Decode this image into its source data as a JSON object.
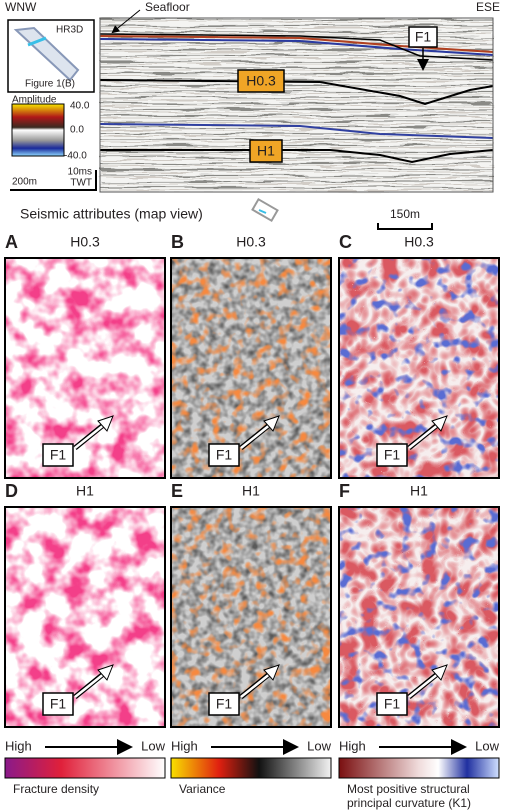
{
  "section": {
    "left_label": "WNW",
    "right_label": "ESE",
    "seafloor": "Seafloor",
    "fault": "F1",
    "horizons": [
      "H0.3",
      "H1"
    ],
    "inset": {
      "label": "HR3D",
      "caption": "Figure 1(B)"
    },
    "amplitude": {
      "title": "Amplitude",
      "ticks": [
        "40.0",
        "0.0",
        "-40.0"
      ]
    },
    "scale_h": "200m",
    "scale_v": [
      "10ms",
      "TWT"
    ]
  },
  "map_caption": "Seismic attributes (map view)",
  "map_scale": "150m",
  "panels": [
    {
      "letter": "A",
      "horizon": "H0.3",
      "fault": "F1"
    },
    {
      "letter": "B",
      "horizon": "H0.3",
      "fault": "F1"
    },
    {
      "letter": "C",
      "horizon": "H0.3",
      "fault": "F1"
    },
    {
      "letter": "D",
      "horizon": "H1",
      "fault": "F1"
    },
    {
      "letter": "E",
      "horizon": "H1",
      "fault": "F1"
    },
    {
      "letter": "F",
      "horizon": "H1",
      "fault": "F1"
    }
  ],
  "legends": [
    {
      "high": "High",
      "low": "Low",
      "label": [
        "Fracture density"
      ]
    },
    {
      "high": "High",
      "low": "Low",
      "label": [
        "Variance"
      ]
    },
    {
      "high": "High",
      "low": "Low",
      "label": [
        "Most positive structural",
        "principal curvature (K1)"
      ]
    }
  ]
}
